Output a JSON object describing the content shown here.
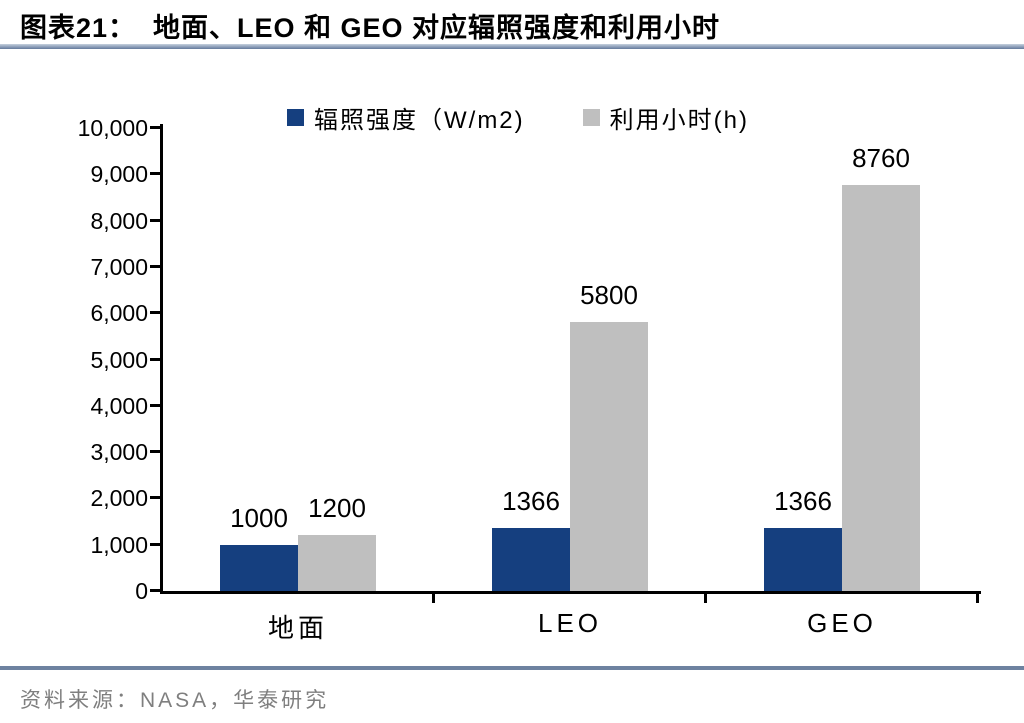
{
  "title": {
    "text": "图表21：  地面、LEO 和 GEO 对应辐照强度和利用小时"
  },
  "source": {
    "text": "资料来源：NASA，华泰研究"
  },
  "chart_data": {
    "type": "bar",
    "title": "地面、LEO 和 GEO 对应辐照强度和利用小时",
    "categories": [
      "地面",
      "LEO",
      "GEO"
    ],
    "series": [
      {
        "name": "辐照强度（W/m2)",
        "color": "#153f7f",
        "values": [
          1000,
          1366,
          1366
        ],
        "value_labels": [
          "1000",
          "1366",
          "1366"
        ]
      },
      {
        "name": "利用小时(h)",
        "color": "#bfbfbf",
        "values": [
          1200,
          5800,
          8760
        ],
        "value_labels": [
          "1200",
          "5800",
          "8760"
        ]
      }
    ],
    "xlabel": "",
    "ylabel": "",
    "ylim": [
      0,
      10000
    ],
    "yticks": [
      {
        "value": 0,
        "label": "0"
      },
      {
        "value": 1000,
        "label": "1,000"
      },
      {
        "value": 2000,
        "label": "2,000"
      },
      {
        "value": 3000,
        "label": "3,000"
      },
      {
        "value": 4000,
        "label": "4,000"
      },
      {
        "value": 5000,
        "label": "5,000"
      },
      {
        "value": 6000,
        "label": "6,000"
      },
      {
        "value": 7000,
        "label": "7,000"
      },
      {
        "value": 8000,
        "label": "8,000"
      },
      {
        "value": 9000,
        "label": "9,000"
      },
      {
        "value": 10000,
        "label": "10,000"
      }
    ],
    "legend_position": "top",
    "grid": false
  },
  "colors": {
    "axis": "#000000",
    "divider": "#6e82a0",
    "source_text": "#7f7f7f",
    "background": "#ffffff"
  }
}
